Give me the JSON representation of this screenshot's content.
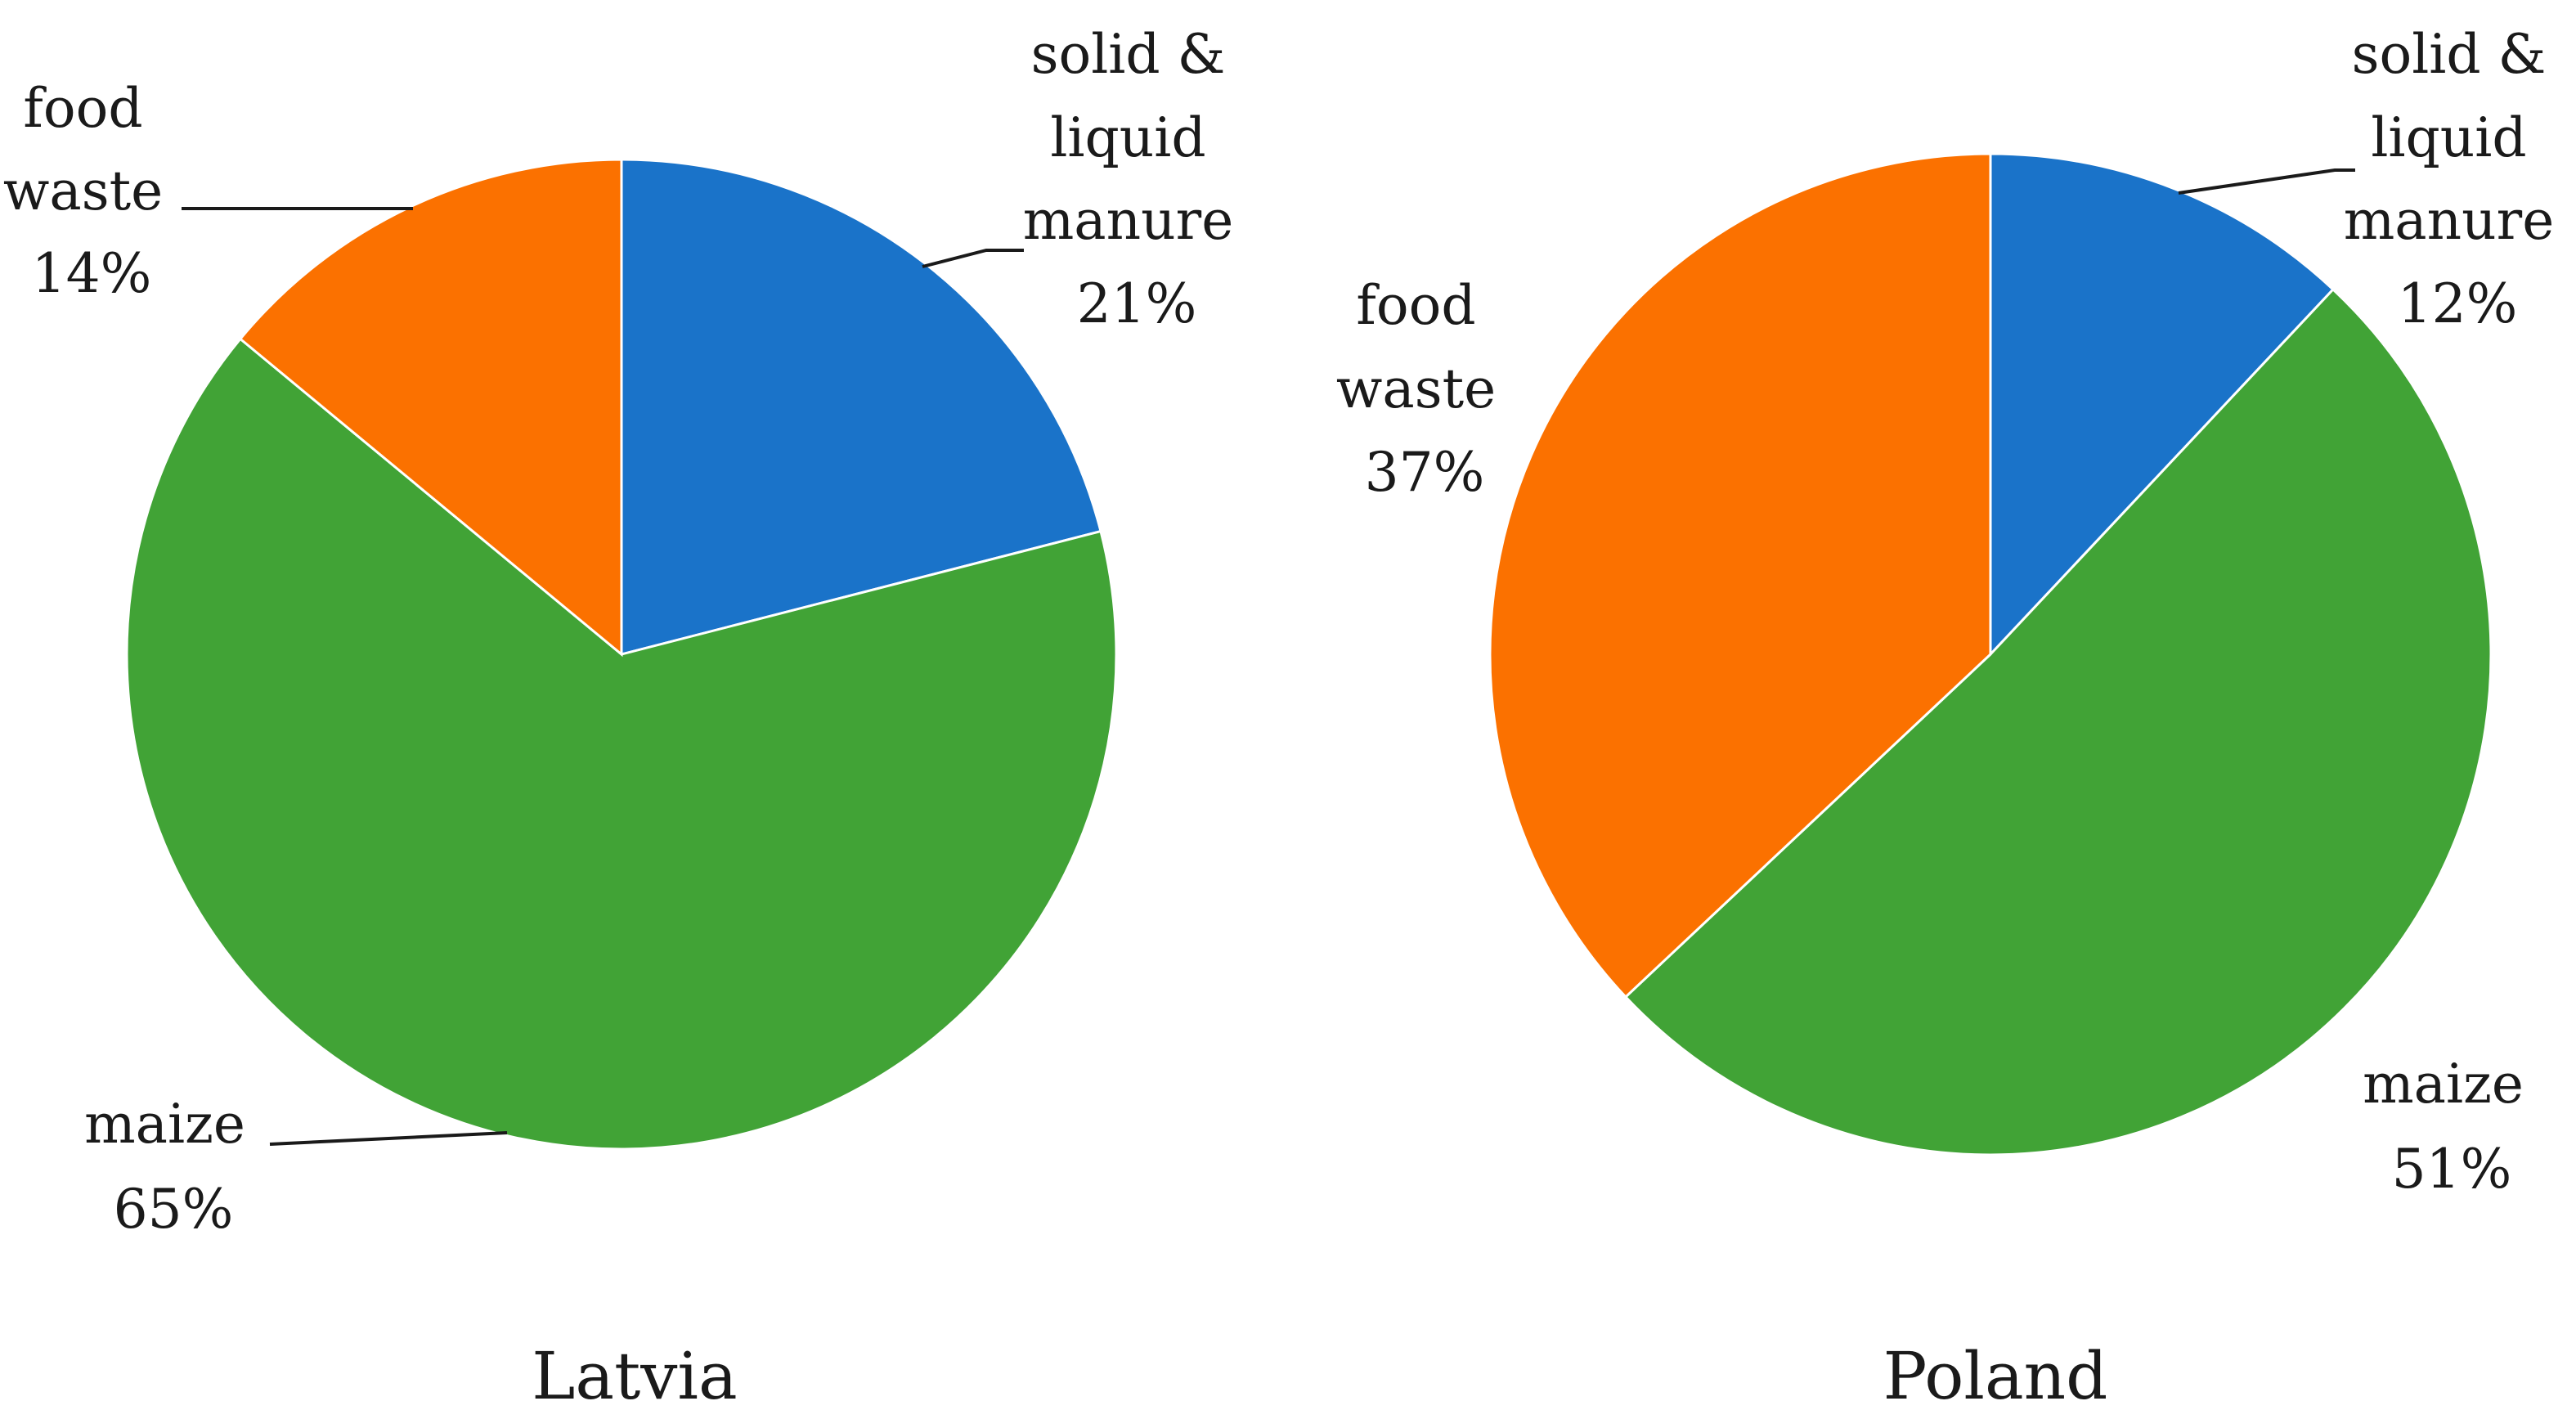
{
  "chart_data": [
    {
      "type": "pie",
      "title": "Latvia",
      "slices": [
        {
          "label": "solid & liquid manure",
          "value": 21,
          "label_text": "21%",
          "color": "#1a73c9"
        },
        {
          "label": "maize",
          "value": 65,
          "label_text": "65%",
          "color": "#41a336"
        },
        {
          "label": "food waste",
          "value": 14,
          "label_text": "14%",
          "color": "#fb7100"
        }
      ]
    },
    {
      "type": "pie",
      "title": "Poland",
      "slices": [
        {
          "label": "solid & liquid manure",
          "value": 12,
          "label_text": "12%",
          "color": "#1a73c9"
        },
        {
          "label": "maize",
          "value": 51,
          "label_text": "51%",
          "color": "#41a336"
        },
        {
          "label": "food waste",
          "value": 37,
          "label_text": "37%",
          "color": "#fb7100"
        }
      ]
    }
  ]
}
